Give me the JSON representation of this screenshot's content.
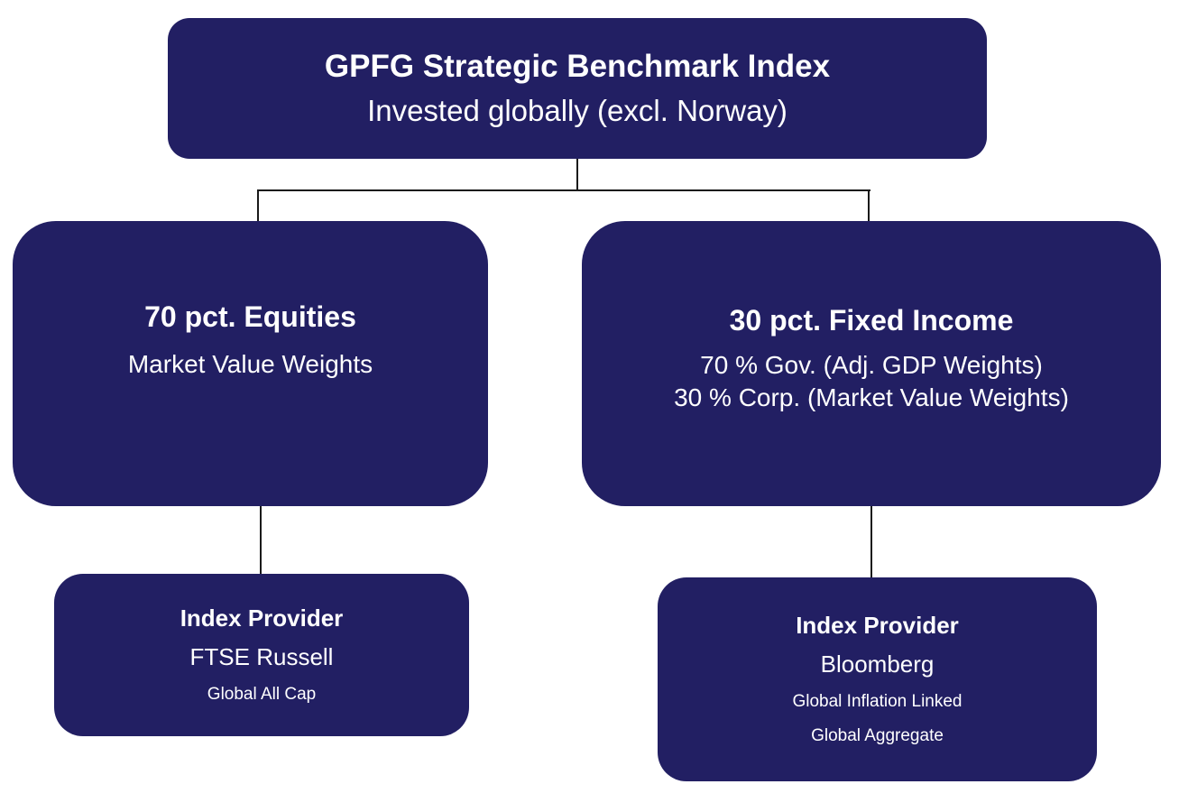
{
  "nodes": {
    "root": {
      "title": "GPFG Strategic Benchmark Index",
      "subtitle": "Invested globally (excl. Norway)"
    },
    "equities": {
      "title": "70 pct. Equities",
      "line1": "Market Value Weights"
    },
    "fixed_income": {
      "title": "30 pct. Fixed Income",
      "line1": "70 % Gov. (Adj. GDP Weights)",
      "line2": "30 % Corp. (Market Value Weights)"
    },
    "equities_provider": {
      "title": "Index Provider",
      "provider": "FTSE Russell",
      "index1": "Global All Cap"
    },
    "fixed_income_provider": {
      "title": "Index Provider",
      "provider": "Bloomberg",
      "index1": "Global Inflation Linked",
      "index2": "Global Aggregate"
    }
  },
  "colors": {
    "box_fill": "#221F63",
    "text": "#FFFFFF",
    "connector": "#1A1A1A",
    "background": "#FFFFFF"
  }
}
